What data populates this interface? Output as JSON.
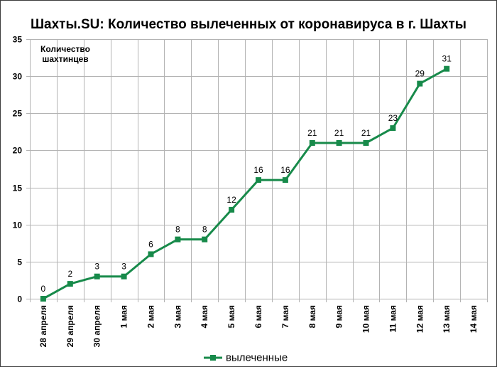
{
  "chart_data": {
    "type": "line",
    "title": "Шахты.SU: Количество вылеченных от коронавируса в г. Шахты",
    "ylabel": [
      "Количество",
      "шахтинцев"
    ],
    "xlabel": "",
    "categories": [
      "28 апреля",
      "29 апреля",
      "30 апреля",
      "1 мая",
      "2 мая",
      "3 мая",
      "4 мая",
      "5 мая",
      "6 мая",
      "7 мая",
      "8 мая",
      "9 мая",
      "10 мая",
      "11 мая",
      "12 мая",
      "13 мая",
      "14 мая"
    ],
    "series": [
      {
        "name": "вылеченные",
        "color": "#178a4a",
        "values": [
          0,
          2,
          3,
          3,
          6,
          8,
          8,
          12,
          16,
          16,
          21,
          21,
          21,
          23,
          29,
          31,
          null
        ]
      }
    ],
    "ylim": [
      0,
      35
    ],
    "yticks": [
      0,
      5,
      10,
      15,
      20,
      25,
      30,
      35
    ],
    "grid": true,
    "data_labels": true,
    "marker": "square",
    "legend": "bottom"
  }
}
